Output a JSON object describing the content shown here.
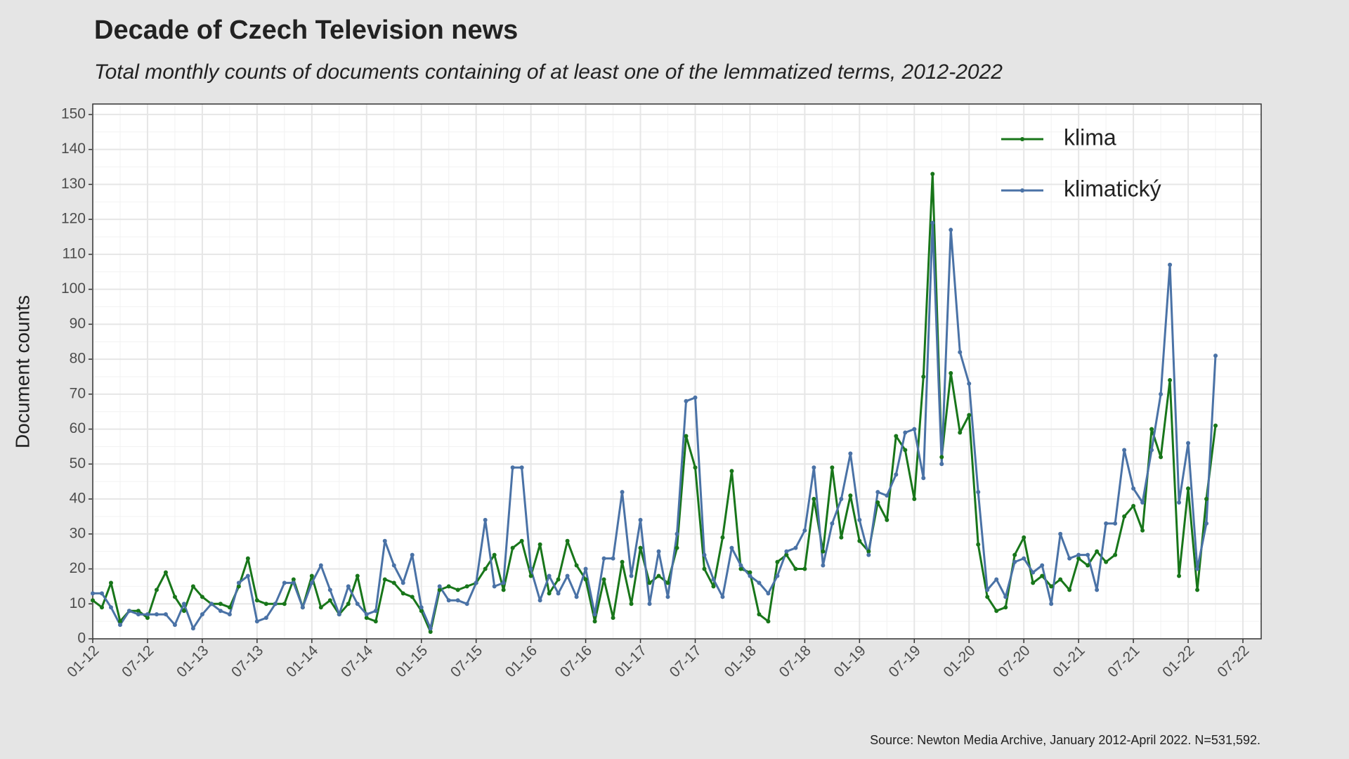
{
  "chart_data": {
    "type": "line",
    "title": "Decade of Czech Television news",
    "subtitle": "Total monthly counts of documents containing of at least one of the lemmatized terms, 2012-2022",
    "y_label": "Document counts",
    "caption": "Source: Newton Media Archive, January 2012-April 2022. N=531,592.",
    "x": [
      "01-12",
      "02-12",
      "03-12",
      "04-12",
      "05-12",
      "06-12",
      "07-12",
      "08-12",
      "09-12",
      "10-12",
      "11-12",
      "12-12",
      "01-13",
      "02-13",
      "03-13",
      "04-13",
      "05-13",
      "06-13",
      "07-13",
      "08-13",
      "09-13",
      "10-13",
      "11-13",
      "12-13",
      "01-14",
      "02-14",
      "03-14",
      "04-14",
      "05-14",
      "06-14",
      "07-14",
      "08-14",
      "09-14",
      "10-14",
      "11-14",
      "12-14",
      "01-15",
      "02-15",
      "03-15",
      "04-15",
      "05-15",
      "06-15",
      "07-15",
      "08-15",
      "09-15",
      "10-15",
      "11-15",
      "12-15",
      "01-16",
      "02-16",
      "03-16",
      "04-16",
      "05-16",
      "06-16",
      "07-16",
      "08-16",
      "09-16",
      "10-16",
      "11-16",
      "12-16",
      "01-17",
      "02-17",
      "03-17",
      "04-17",
      "05-17",
      "06-17",
      "07-17",
      "08-17",
      "09-17",
      "10-17",
      "11-17",
      "12-17",
      "01-18",
      "02-18",
      "03-18",
      "04-18",
      "05-18",
      "06-18",
      "07-18",
      "08-18",
      "09-18",
      "10-18",
      "11-18",
      "12-18",
      "01-19",
      "02-19",
      "03-19",
      "04-19",
      "05-19",
      "06-19",
      "07-19",
      "08-19",
      "09-19",
      "10-19",
      "11-19",
      "12-19",
      "01-20",
      "02-20",
      "03-20",
      "04-20",
      "05-20",
      "06-20",
      "07-20",
      "08-20",
      "09-20",
      "10-20",
      "11-20",
      "12-20",
      "01-21",
      "02-21",
      "03-21",
      "04-21",
      "05-21",
      "06-21",
      "07-21",
      "08-21",
      "09-21",
      "10-21",
      "11-21",
      "12-21",
      "01-22",
      "02-22",
      "03-22",
      "04-22"
    ],
    "series": [
      {
        "name": "klima",
        "color": "#18761a",
        "values": [
          11,
          9,
          16,
          5,
          8,
          8,
          6,
          14,
          19,
          12,
          8,
          15,
          12,
          10,
          10,
          9,
          15,
          23,
          11,
          10,
          10,
          10,
          17,
          9,
          18,
          9,
          11,
          7,
          10,
          18,
          6,
          5,
          17,
          16,
          13,
          12,
          8,
          2,
          14,
          15,
          14,
          15,
          16,
          20,
          24,
          14,
          26,
          28,
          18,
          27,
          13,
          17,
          28,
          21,
          17,
          5,
          17,
          6,
          22,
          10,
          26,
          16,
          18,
          16,
          26,
          58,
          49,
          20,
          15,
          29,
          48,
          20,
          19,
          7,
          5,
          22,
          24,
          20,
          20,
          40,
          25,
          49,
          29,
          41,
          28,
          25,
          39,
          34,
          58,
          54,
          40,
          75,
          133,
          52,
          76,
          59,
          64,
          27,
          12,
          8,
          9,
          24,
          29,
          16,
          18,
          15,
          17,
          14,
          23,
          21,
          25,
          22,
          24,
          35,
          38,
          31,
          60,
          52,
          74,
          18,
          43,
          14,
          40,
          61
        ]
      },
      {
        "name": "klimatický",
        "color": "#4a72a6",
        "values": [
          13,
          13,
          9,
          4,
          8,
          7,
          7,
          7,
          7,
          4,
          10,
          3,
          7,
          10,
          8,
          7,
          16,
          18,
          5,
          6,
          10,
          16,
          16,
          9,
          16,
          21,
          14,
          7,
          15,
          10,
          7,
          8,
          28,
          21,
          16,
          24,
          9,
          3,
          15,
          11,
          11,
          10,
          16,
          34,
          15,
          16,
          49,
          49,
          20,
          11,
          18,
          13,
          18,
          12,
          20,
          7,
          23,
          23,
          42,
          18,
          34,
          10,
          25,
          12,
          30,
          68,
          69,
          24,
          17,
          12,
          26,
          21,
          18,
          16,
          13,
          18,
          25,
          26,
          31,
          49,
          21,
          33,
          40,
          53,
          34,
          24,
          42,
          41,
          47,
          59,
          60,
          46,
          119,
          50,
          117,
          82,
          73,
          42,
          14,
          17,
          12,
          22,
          23,
          19,
          21,
          10,
          30,
          23,
          24,
          24,
          14,
          33,
          33,
          54,
          43,
          39,
          54,
          70,
          107,
          39,
          56,
          20,
          33,
          81
        ]
      }
    ],
    "xlim": [
      "01-12",
      "09-22"
    ],
    "xticks": [
      "01-12",
      "07-12",
      "01-13",
      "07-13",
      "01-14",
      "07-14",
      "01-15",
      "07-15",
      "01-16",
      "07-16",
      "01-17",
      "07-17",
      "01-18",
      "07-18",
      "01-19",
      "07-19",
      "01-20",
      "07-20",
      "01-21",
      "07-21",
      "01-22",
      "07-22"
    ],
    "ylim": [
      0,
      153
    ],
    "yticks": [
      0,
      10,
      20,
      30,
      40,
      50,
      60,
      70,
      80,
      90,
      100,
      110,
      120,
      130,
      140,
      150
    ],
    "grid": true,
    "legend": "top-right"
  }
}
